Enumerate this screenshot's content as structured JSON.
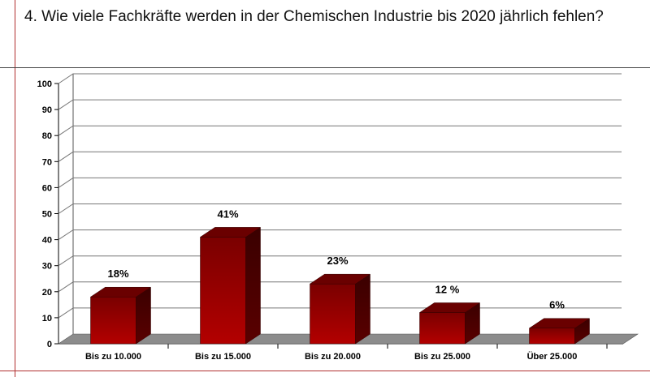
{
  "title": "4. Wie viele Fachkräfte werden in der Chemischen Industrie bis 2020 jährlich fehlen?",
  "chart_data": {
    "type": "bar",
    "title": "4. Wie viele Fachkräfte werden in der Chemischen Industrie bis 2020 jährlich fehlen?",
    "categories": [
      "Bis zu 10.000",
      "Bis zu 15.000",
      "Bis zu 20.000",
      "Bis zu 25.000",
      "Über 25.000"
    ],
    "values": [
      18,
      41,
      23,
      12,
      6
    ],
    "data_labels": [
      "18%",
      "41%",
      "23%",
      "12 %",
      "6%"
    ],
    "ylim": [
      0,
      100
    ],
    "yticks": [
      0,
      10,
      20,
      30,
      40,
      50,
      60,
      70,
      80,
      90,
      100
    ],
    "grid": true,
    "three_d": true,
    "bar_color": "#8b0000",
    "floor_color": "#8c8c8c"
  }
}
